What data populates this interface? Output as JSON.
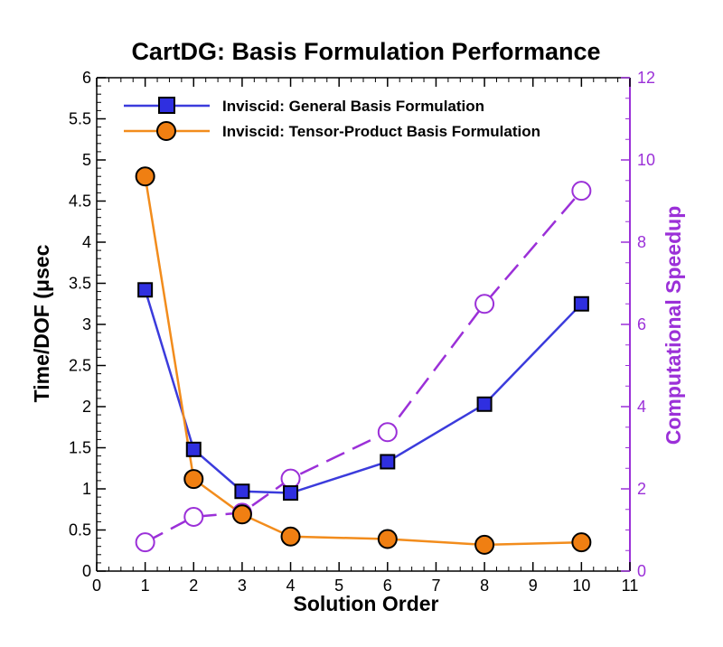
{
  "chart_data": {
    "type": "line",
    "title": "CartDG: Basis Formulation Performance",
    "xlabel": "Solution Order",
    "ylabel": "Time/DOF (μsec",
    "y2label": "Computational Speedup",
    "xlim": [
      0,
      11
    ],
    "ylim": [
      0,
      6
    ],
    "y2lim": [
      0,
      12
    ],
    "xticks": [
      "0",
      "1",
      "2",
      "3",
      "4",
      "5",
      "6",
      "7",
      "8",
      "9",
      "10",
      "11"
    ],
    "yticks": [
      "0",
      "0.5",
      "1",
      "1.5",
      "2",
      "2.5",
      "3",
      "3.5",
      "4",
      "4.5",
      "5",
      "5.5",
      "6"
    ],
    "y2ticks": [
      "0",
      "2",
      "4",
      "6",
      "8",
      "10",
      "12"
    ],
    "grid": false,
    "legend_position": "top-left",
    "colors": {
      "general": "#3b3bdc",
      "general_fill": "#2f2fe0",
      "tensor": "#f28c1c",
      "tensor_fill": "#f07f12",
      "speedup": "#9b30d8"
    },
    "series": [
      {
        "name": "Inviscid: General Basis Formulation",
        "axis": "left",
        "marker": "square",
        "x": [
          1,
          2,
          3,
          4,
          6,
          8,
          10
        ],
        "y": [
          3.42,
          1.48,
          0.97,
          0.95,
          1.33,
          2.03,
          3.25
        ]
      },
      {
        "name": "Inviscid: Tensor-Product Basis Formulation",
        "axis": "left",
        "marker": "circle",
        "x": [
          1,
          2,
          3,
          4,
          6,
          8,
          10
        ],
        "y": [
          4.8,
          1.12,
          0.69,
          0.42,
          0.39,
          0.32,
          0.35
        ]
      },
      {
        "axis": "right",
        "marker": "open-circle",
        "dashed": true,
        "x": [
          1,
          2,
          3,
          4,
          6,
          8,
          10
        ],
        "y": [
          0.7,
          1.32,
          1.42,
          2.25,
          3.38,
          6.5,
          9.25
        ]
      }
    ]
  }
}
